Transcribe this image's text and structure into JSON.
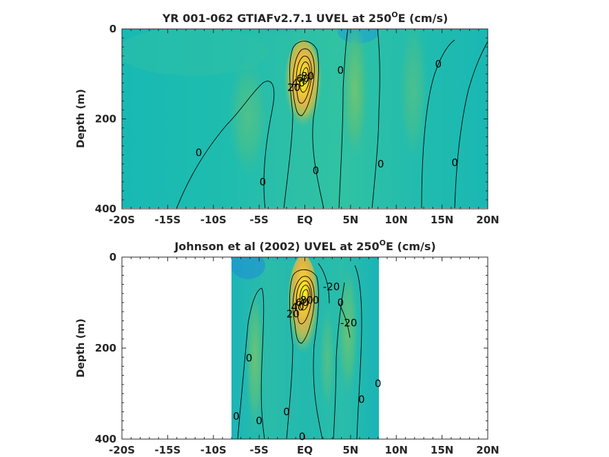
{
  "chart_data": [
    {
      "type": "heatmap",
      "title": "YR 001-062 GTIAFv2.7.1 UVEL at 250",
      "title_sup": "O",
      "title_suffix": "E (cm/s)",
      "ylabel": "Depth (m)",
      "xlabel": "",
      "x_ticks": [
        "-20S",
        "-15S",
        "-10S",
        "-5S",
        "EQ",
        "5N",
        "10N",
        "15N",
        "20N"
      ],
      "x_tick_values": [
        -20,
        -15,
        -10,
        -5,
        0,
        5,
        10,
        15,
        20
      ],
      "xlim": [
        -20,
        20
      ],
      "y_ticks": [
        "0",
        "200",
        "400"
      ],
      "y_tick_values": [
        0,
        200,
        400
      ],
      "ylim": [
        400,
        0
      ],
      "data_extent_lat": [
        -20,
        20
      ],
      "contour_labels": [
        {
          "text": "0",
          "lat": -11.6,
          "depth": 275
        },
        {
          "text": "0",
          "lat": -4.6,
          "depth": 340
        },
        {
          "text": "0",
          "lat": 1.2,
          "depth": 315
        },
        {
          "text": "0",
          "lat": 3.9,
          "depth": 92
        },
        {
          "text": "0",
          "lat": 8.3,
          "depth": 300
        },
        {
          "text": "0",
          "lat": 14.6,
          "depth": 78
        },
        {
          "text": "0",
          "lat": 16.4,
          "depth": 297
        },
        {
          "text": "20",
          "lat": -1.2,
          "depth": 130
        },
        {
          "text": "40",
          "lat": -0.7,
          "depth": 120
        },
        {
          "text": "60",
          "lat": -0.2,
          "depth": 110
        },
        {
          "text": "80",
          "lat": 0.3,
          "depth": 105
        }
      ]
    },
    {
      "type": "heatmap",
      "title": "Johnson et al (2002) UVEL at 250",
      "title_sup": "O",
      "title_suffix": "E (cm/s)",
      "ylabel": "Depth (m)",
      "xlabel": "",
      "x_ticks": [
        "-20S",
        "-15S",
        "-10S",
        "-5S",
        "EQ",
        "5N",
        "10N",
        "15N",
        "20N"
      ],
      "x_tick_values": [
        -20,
        -15,
        -10,
        -5,
        0,
        5,
        10,
        15,
        20
      ],
      "xlim": [
        -20,
        20
      ],
      "y_ticks": [
        "0",
        "200",
        "400"
      ],
      "y_tick_values": [
        0,
        200,
        400
      ],
      "ylim": [
        400,
        0
      ],
      "data_extent_lat": [
        -8,
        8
      ],
      "contour_labels": [
        {
          "text": "0",
          "lat": -7.5,
          "depth": 350
        },
        {
          "text": "0",
          "lat": -6.1,
          "depth": 222
        },
        {
          "text": "0",
          "lat": -5.0,
          "depth": 360
        },
        {
          "text": "0",
          "lat": -2.0,
          "depth": 340
        },
        {
          "text": "0",
          "lat": -0.3,
          "depth": 395
        },
        {
          "text": "0",
          "lat": 1.2,
          "depth": 95
        },
        {
          "text": "0",
          "lat": 3.9,
          "depth": 100
        },
        {
          "text": "0",
          "lat": 6.2,
          "depth": 313
        },
        {
          "text": "0",
          "lat": 8.0,
          "depth": 278
        },
        {
          "text": "-20",
          "lat": 2.9,
          "depth": 65
        },
        {
          "text": "-20",
          "lat": 4.8,
          "depth": 145
        },
        {
          "text": "20",
          "lat": -1.3,
          "depth": 125
        },
        {
          "text": "40",
          "lat": -0.8,
          "depth": 110
        },
        {
          "text": "60",
          "lat": -0.3,
          "depth": 100
        },
        {
          "text": "80",
          "lat": 0.2,
          "depth": 95
        }
      ]
    }
  ]
}
